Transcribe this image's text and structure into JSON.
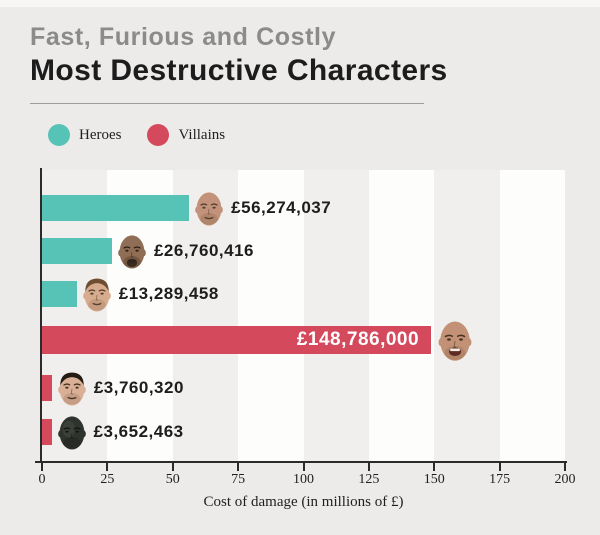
{
  "page": {
    "background": "#ecebe9"
  },
  "header": {
    "kicker": "Fast, Furious and Costly",
    "title": "Most Destructive Characters"
  },
  "legend": {
    "items": [
      {
        "label": "Heroes",
        "color": "#57c3b7"
      },
      {
        "label": "Villains",
        "color": "#d5495c"
      }
    ]
  },
  "chart_data": {
    "type": "bar",
    "orientation": "horizontal",
    "title": "Most Destructive Characters",
    "subtitle": "Fast, Furious and Costly",
    "xlabel": "Cost of damage (in millions of £)",
    "xlim": [
      0,
      200
    ],
    "xticks": [
      0,
      25,
      50,
      75,
      100,
      125,
      150,
      175,
      200
    ],
    "grid": "alternating-vertical-bands",
    "band_colors": {
      "shaded": "#f1efee",
      "light": "#fdfdfc"
    },
    "legend_position": "top-left",
    "series_colors": {
      "Heroes": "#57c3b7",
      "Villains": "#d5495c"
    },
    "bars": [
      {
        "value_label": "£56,274,037",
        "value_millions": 56.274037,
        "group": "Heroes",
        "label_position": "outside",
        "face_icon": "bald-tan-man-face-icon"
      },
      {
        "value_label": "£26,760,416",
        "value_millions": 26.760416,
        "group": "Heroes",
        "label_position": "outside",
        "face_icon": "bald-goatee-man-face-icon"
      },
      {
        "value_label": "£13,289,458",
        "value_millions": 13.289458,
        "group": "Heroes",
        "label_position": "outside",
        "face_icon": "brown-hair-man-face-icon"
      },
      {
        "value_label": "£148,786,000",
        "value_millions": 148.786,
        "group": "Villains",
        "label_position": "inside",
        "face_icon": "laughing-bald-man-face-icon"
      },
      {
        "value_label": "£3,760,320",
        "value_millions": 3.76032,
        "group": "Villains",
        "label_position": "outside",
        "face_icon": "dark-hair-man-face-icon"
      },
      {
        "value_label": "£3,652,463",
        "value_millions": 3.652463,
        "group": "Villains",
        "label_position": "outside",
        "face_icon": "dark-masked-face-icon"
      }
    ]
  }
}
